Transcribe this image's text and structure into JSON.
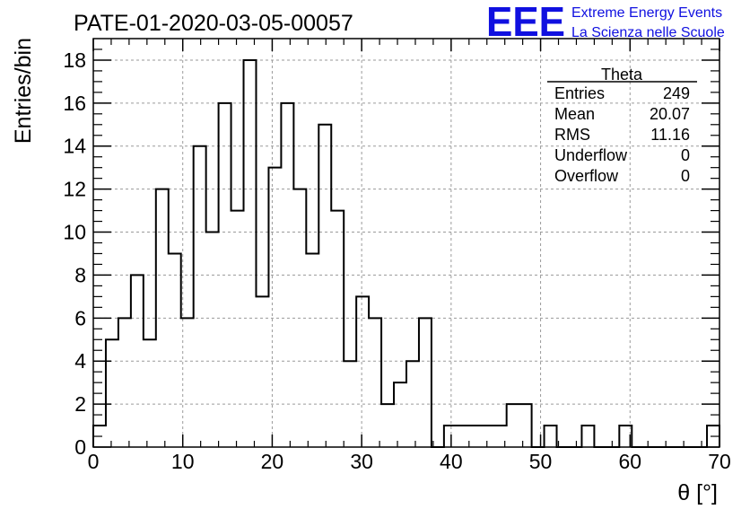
{
  "chart_data": {
    "type": "bar",
    "style": "step-histogram",
    "title": "PATE-01-2020-03-05-00057",
    "xlabel": "θ [°]",
    "ylabel": "Entries/bin",
    "xlim": [
      0,
      70
    ],
    "ylim": [
      0,
      19
    ],
    "xticks": [
      "0",
      "10",
      "20",
      "30",
      "40",
      "50",
      "60",
      "70"
    ],
    "yticks": [
      "0",
      "2",
      "4",
      "6",
      "8",
      "10",
      "12",
      "14",
      "16",
      "18"
    ],
    "grid": true,
    "bin_width": 1.4,
    "bin_edges_start": 0,
    "values": [
      1,
      5,
      6,
      8,
      5,
      12,
      9,
      6,
      14,
      10,
      16,
      11,
      18,
      7,
      13,
      16,
      12,
      9,
      15,
      11,
      4,
      7,
      6,
      2,
      3,
      4,
      6,
      0,
      1,
      1,
      1,
      1,
      1,
      2,
      2,
      0,
      1,
      0,
      0,
      1,
      0,
      0,
      1,
      0,
      0,
      0,
      0,
      0,
      0,
      1
    ],
    "line_color": "#000000",
    "grid_color": "#9a9a9a",
    "stats": {
      "title": "Theta",
      "rows": [
        {
          "label": "Entries",
          "value": "249"
        },
        {
          "label": "Mean",
          "value": "20.07"
        },
        {
          "label": "RMS",
          "value": "11.16"
        },
        {
          "label": "Underflow",
          "value": "0"
        },
        {
          "label": "Overflow",
          "value": "0"
        }
      ]
    }
  },
  "logo": {
    "mark": "EEE",
    "line1": "Extreme Energy Events",
    "line2": "La Scienza nelle Scuole",
    "color": "#1010e0"
  }
}
